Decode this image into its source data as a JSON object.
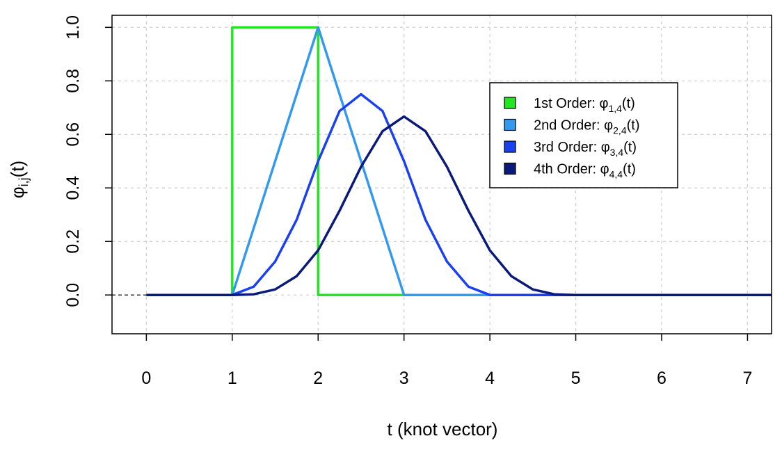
{
  "chart_data": {
    "type": "line",
    "xlabel": "t (knot vector)",
    "ylabel": "φ",
    "ylabel_sub": "i,j",
    "ylabel_suffix": "(t)",
    "xlim": [
      -0.4,
      7.28
    ],
    "ylim": [
      -0.145,
      1.045
    ],
    "xticks": [
      "0",
      "1",
      "2",
      "3",
      "4",
      "5",
      "6",
      "7"
    ],
    "yticks": [
      "0.0",
      "0.2",
      "0.4",
      "0.6",
      "0.8",
      "1.0"
    ],
    "grid": true,
    "legend_position": "top-right",
    "series": [
      {
        "name": "1st Order: φ",
        "name_sub": "1,4",
        "name_suffix": "(t)",
        "color": "#22e622",
        "x": [
          0,
          1,
          1,
          2,
          2,
          3
        ],
        "y": [
          0,
          0,
          1,
          1,
          0,
          0
        ]
      },
      {
        "name": "2nd Order: φ",
        "name_sub": "2,4",
        "name_suffix": "(t)",
        "color": "#3399ee",
        "x": [
          0,
          1,
          2,
          3,
          7.28
        ],
        "y": [
          0,
          0,
          1,
          0,
          0
        ]
      },
      {
        "name": "3rd Order: φ",
        "name_sub": "3,4",
        "name_suffix": "(t)",
        "color": "#1a40f0",
        "x": [
          0,
          1,
          1.25,
          1.5,
          1.75,
          2,
          2.25,
          2.5,
          2.75,
          3,
          3.25,
          3.5,
          3.75,
          4,
          7.28
        ],
        "y": [
          0,
          0,
          0.031,
          0.125,
          0.281,
          0.5,
          0.6875,
          0.75,
          0.6875,
          0.5,
          0.281,
          0.125,
          0.031,
          0,
          0
        ]
      },
      {
        "name": "4th Order: φ",
        "name_sub": "4,4",
        "name_suffix": "(t)",
        "color": "#0a1a7a",
        "x": [
          0,
          1,
          1.25,
          1.5,
          1.75,
          2,
          2.25,
          2.5,
          2.75,
          3,
          3.25,
          3.5,
          3.75,
          4,
          4.25,
          4.5,
          4.75,
          5,
          7.28
        ],
        "y": [
          0,
          0,
          0.0026,
          0.0208,
          0.0703,
          0.1667,
          0.3151,
          0.4792,
          0.612,
          0.6667,
          0.612,
          0.4792,
          0.3151,
          0.1667,
          0.0703,
          0.0208,
          0.0026,
          0,
          0
        ]
      }
    ],
    "reference_line": {
      "y": 0,
      "color": "#333333",
      "style": "dashed",
      "x_range": [
        -0.4,
        0
      ]
    }
  }
}
